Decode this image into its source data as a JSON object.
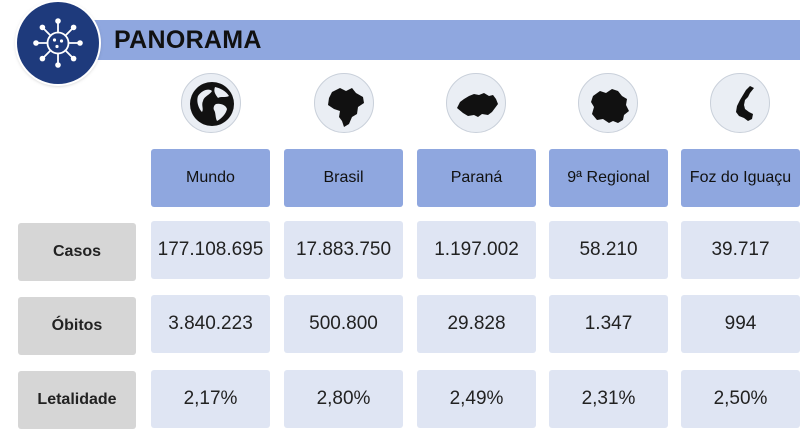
{
  "header": {
    "title": "PANORAMA",
    "logo_icon": "virus-icon"
  },
  "colors": {
    "banner": "#8fa7df",
    "logo": "#1e3a7c",
    "cell": "#dfe5f3",
    "row_header": "#d6d6d6"
  },
  "columns": [
    {
      "label": "Mundo",
      "icon": "globe-icon"
    },
    {
      "label": "Brasil",
      "icon": "brazil-map-icon"
    },
    {
      "label": "Paraná",
      "icon": "parana-map-icon"
    },
    {
      "label": "9ª Regional",
      "icon": "regional-map-icon"
    },
    {
      "label": "Foz do Iguaçu",
      "icon": "foz-map-icon"
    }
  ],
  "rows": [
    {
      "label": "Casos",
      "values": [
        "177.108.695",
        "17.883.750",
        "1.197.002",
        "58.210",
        "39.717"
      ]
    },
    {
      "label": "Óbitos",
      "values": [
        "3.840.223",
        "500.800",
        "29.828",
        "1.347",
        "994"
      ]
    },
    {
      "label": "Letalidade",
      "values": [
        "2,17%",
        "2,80%",
        "2,49%",
        "2,31%",
        "2,50%"
      ]
    }
  ]
}
